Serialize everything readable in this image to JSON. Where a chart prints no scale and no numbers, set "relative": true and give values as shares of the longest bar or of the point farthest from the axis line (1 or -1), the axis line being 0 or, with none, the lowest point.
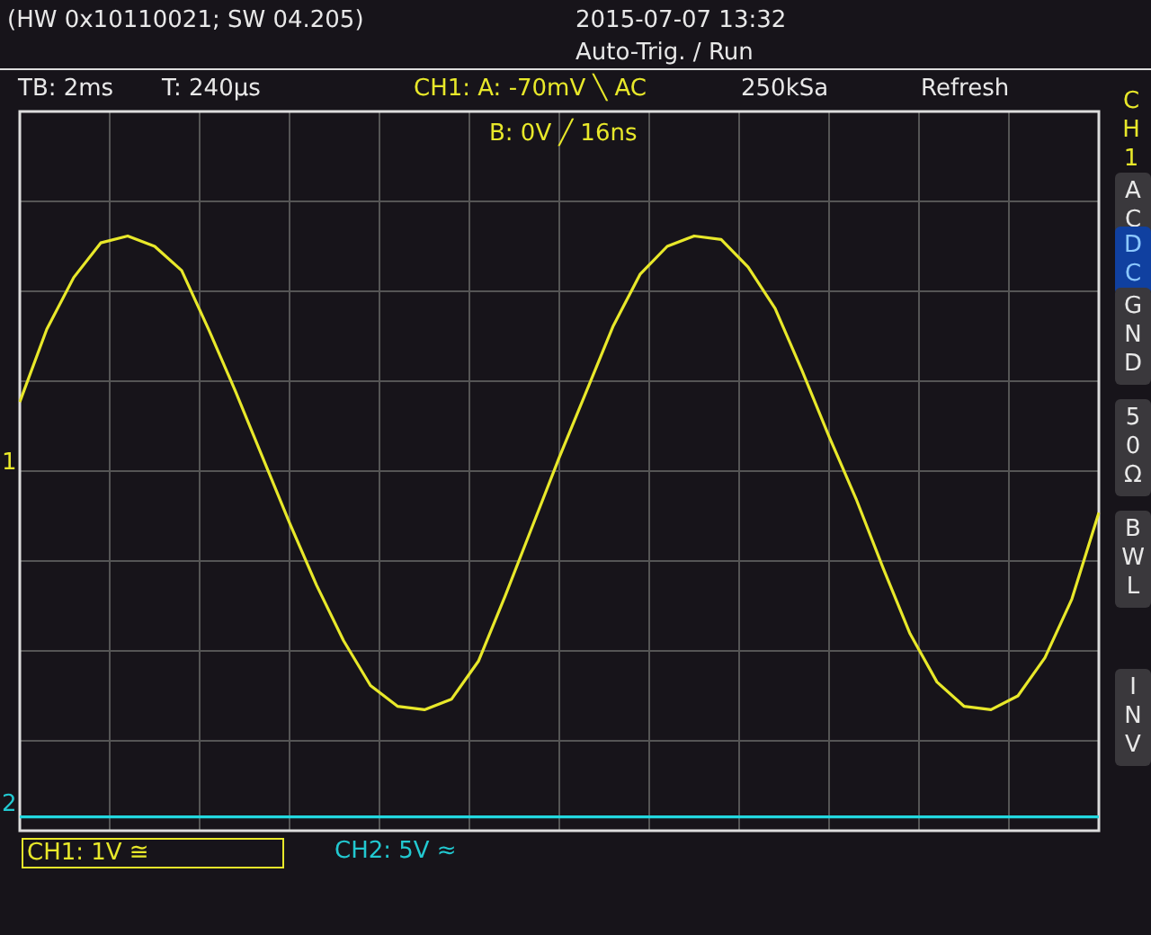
{
  "chart_data": {
    "type": "line",
    "relative": true,
    "grid": true,
    "legend": false,
    "marker": "none",
    "line_style": "solid",
    "categories": [
      null,
      null,
      null,
      null,
      null,
      null,
      null,
      null,
      null,
      null,
      null,
      null,
      null,
      null,
      null,
      null,
      null,
      null,
      null,
      null,
      null,
      null,
      null,
      null,
      null,
      null,
      null,
      null,
      null,
      null,
      null,
      null,
      null,
      null,
      null,
      null,
      null,
      null,
      null,
      null,
      null
    ],
    "series": [
      {
        "color": "#e8e82a",
        "values": [
          0.2,
          0.41,
          0.56,
          0.66,
          0.68,
          0.65,
          0.58,
          0.41,
          0.23,
          0.04,
          -0.15,
          -0.33,
          -0.49,
          -0.62,
          -0.68,
          -0.69,
          -0.66,
          -0.55,
          -0.36,
          -0.16,
          0.04,
          0.23,
          0.42,
          0.57,
          0.65,
          0.68,
          0.67,
          0.59,
          0.47,
          0.29,
          0.1,
          -0.08,
          -0.28,
          -0.47,
          -0.61,
          -0.68,
          -0.69,
          -0.65,
          -0.54,
          -0.37,
          -0.12
        ]
      },
      {
        "color": "#22d8e0",
        "values": [
          -1,
          -1,
          -1,
          -1,
          -1,
          -1,
          -1,
          -1,
          -1,
          -1,
          -1,
          -1,
          -1,
          -1,
          -1,
          -1,
          -1,
          -1,
          -1,
          -1,
          -1,
          -1,
          -1,
          -1,
          -1,
          -1,
          -1,
          -1,
          -1,
          -1,
          -1,
          -1,
          -1,
          -1,
          -1,
          -1,
          -1,
          -1,
          -1,
          -1,
          -1
        ]
      }
    ],
    "annotations": [
      "(HW 0x10110021; SW 04.205)",
      "2015-07-07 13:32",
      "Auto-Trig. / Run",
      "TB: 2ms",
      "T: 240µs",
      "CH1: A: -70mV ╲ AC",
      "250kSa",
      "Refresh",
      "B: 0V ╱ 16ns",
      "CH1: 1V ≅",
      "CH2: 5V ≈",
      "CH1",
      "AC",
      "DC",
      "GND",
      "50Ω",
      "BWL",
      "INV",
      "1",
      "2"
    ]
  }
}
